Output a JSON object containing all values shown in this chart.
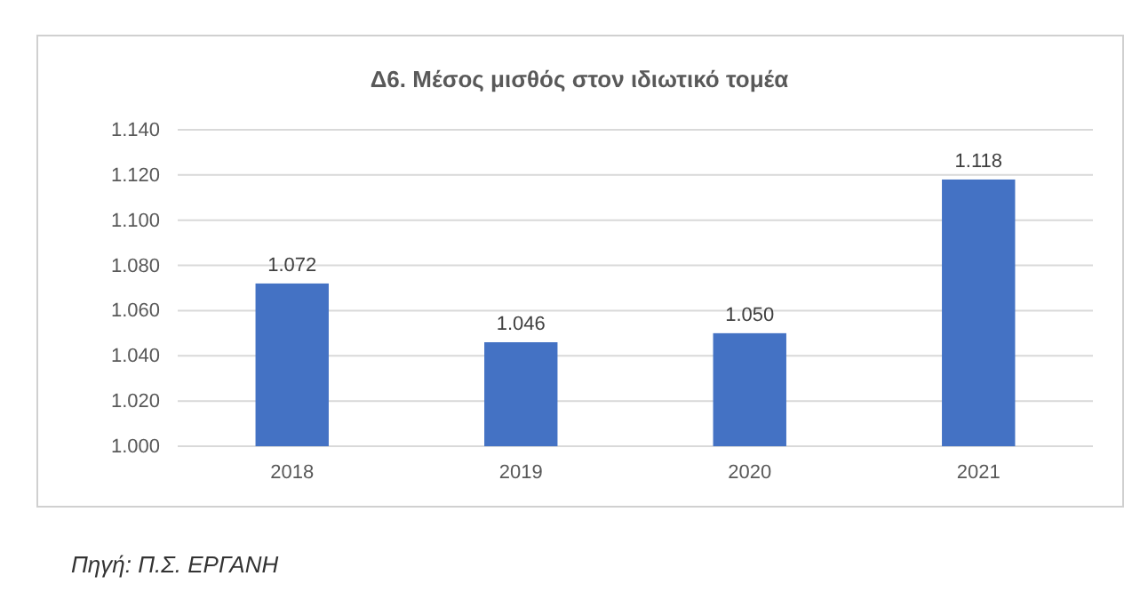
{
  "chart_data": {
    "type": "bar",
    "title": "Δ6. Μέσος μισθός στον ιδιωτικό τομέα",
    "categories": [
      "2018",
      "2019",
      "2020",
      "2021"
    ],
    "values": [
      1.072,
      1.046,
      1.05,
      1.118
    ],
    "value_labels": [
      "1.072",
      "1.046",
      "1.050",
      "1.118"
    ],
    "color": "#4472c4",
    "ylim": [
      1.0,
      1.14
    ],
    "yticks": [
      {
        "value": 1.0,
        "label": "1.000"
      },
      {
        "value": 1.02,
        "label": "1.020"
      },
      {
        "value": 1.04,
        "label": "1.040"
      },
      {
        "value": 1.06,
        "label": "1.060"
      },
      {
        "value": 1.08,
        "label": "1.080"
      },
      {
        "value": 1.1,
        "label": "1.100"
      },
      {
        "value": 1.12,
        "label": "1.120"
      },
      {
        "value": 1.14,
        "label": "1.140"
      }
    ],
    "grid": "y",
    "annotations": [
      "Πηγή: Π.Σ. ΕΡΓΑΝΗ"
    ]
  }
}
